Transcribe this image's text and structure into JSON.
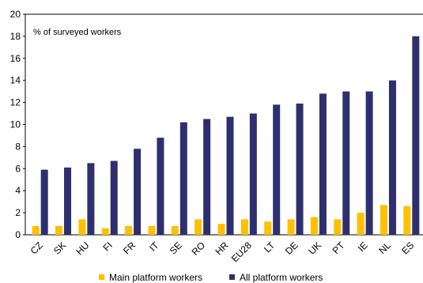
{
  "chart_data": {
    "type": "bar",
    "unit_label": "% of surveyed workers",
    "categories": [
      "CZ",
      "SK",
      "HU",
      "FI",
      "FR",
      "IT",
      "SE",
      "RO",
      "HR",
      "EU28",
      "LT",
      "DE",
      "UK",
      "PT",
      "IE",
      "NL",
      "ES"
    ],
    "series": [
      {
        "name": "Main platform workers",
        "color": "#FFC000",
        "values": [
          0.8,
          0.8,
          1.4,
          0.6,
          0.8,
          0.8,
          0.8,
          1.4,
          1.0,
          1.4,
          1.2,
          1.4,
          1.6,
          1.4,
          2.0,
          2.7,
          2.6
        ]
      },
      {
        "name": "All platform workers",
        "color": "#2E2F6E",
        "values": [
          5.9,
          6.1,
          6.5,
          6.7,
          7.8,
          8.8,
          10.2,
          10.5,
          10.7,
          11.0,
          11.8,
          11.9,
          12.8,
          13.0,
          13.0,
          14.0,
          18.0
        ]
      }
    ],
    "yticks": [
      0,
      2,
      4,
      6,
      8,
      10,
      12,
      14,
      16,
      18,
      20
    ],
    "ylim": [
      0,
      20
    ],
    "grid": false,
    "legend_position": "bottom"
  }
}
